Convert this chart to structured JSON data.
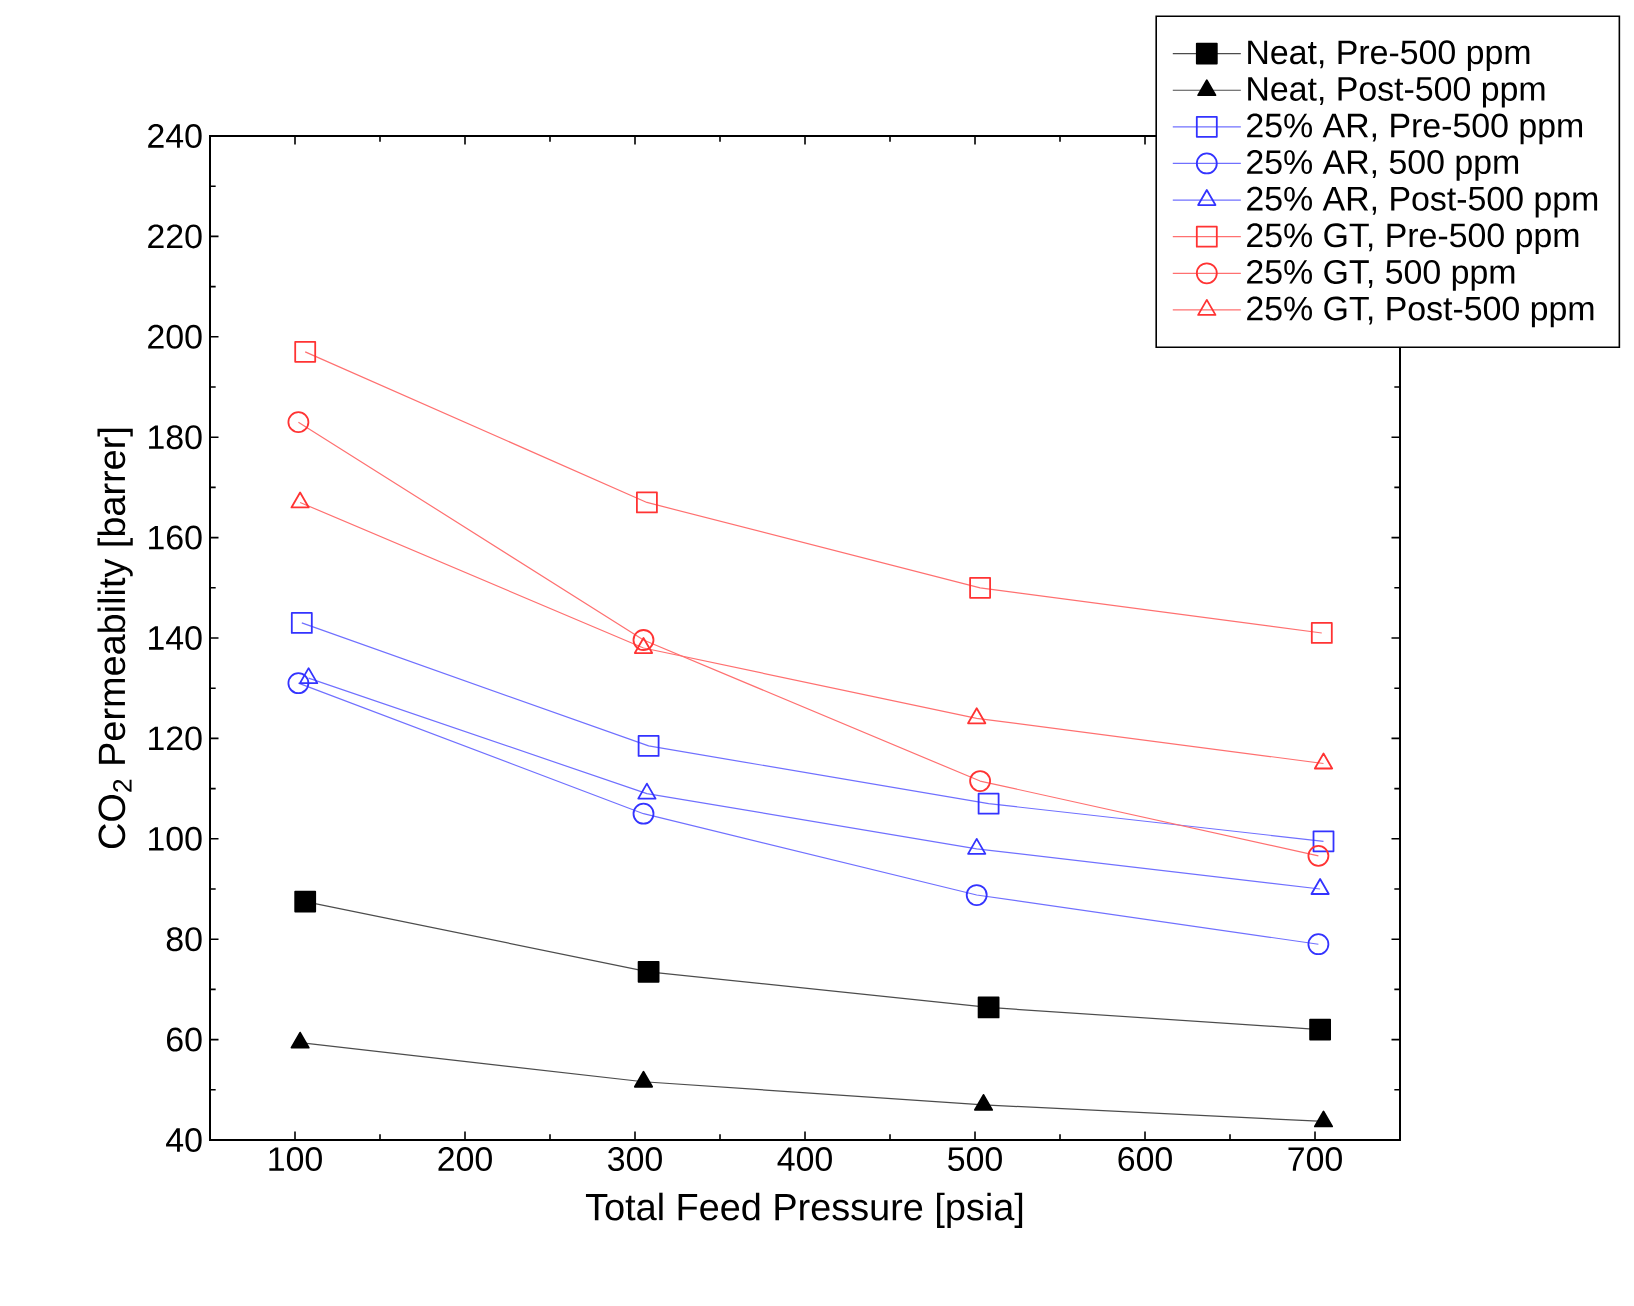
{
  "chart_data": {
    "type": "line",
    "xlabel": "Total Feed Pressure [psia]",
    "ylabel": "CO$_{2}$ Permeability [barrer]",
    "xlim": [
      50,
      750
    ],
    "xticks": [
      100,
      200,
      300,
      400,
      500,
      600,
      700
    ],
    "ylim": [
      40,
      240
    ],
    "yticks": [
      40,
      60,
      80,
      100,
      120,
      140,
      160,
      180,
      200,
      220,
      240
    ],
    "grid": false,
    "legend": "top right",
    "line_style": "solid",
    "series": [
      {
        "name": "Neat, Pre-500 ppm",
        "color": "#000000",
        "marker": "square",
        "x": [
          106,
          308,
          508,
          703
        ],
        "values": [
          87.5,
          73.5,
          66.4,
          62
        ]
      },
      {
        "name": "Neat, Post-500 ppm",
        "color": "#000000",
        "marker": "triangle",
        "x": [
          103,
          305,
          505,
          705
        ],
        "values": [
          59.4,
          51.6,
          47,
          43.7
        ]
      },
      {
        "name": "25% AR, Pre-500 ppm",
        "color": "#3333ff",
        "marker": "square",
        "x": [
          104,
          308,
          508,
          705
        ],
        "values": [
          143,
          118.5,
          107,
          99.5
        ]
      },
      {
        "name": "25% AR, 500 ppm",
        "color": "#3333ff",
        "marker": "circle",
        "x": [
          102,
          305,
          501,
          702
        ],
        "values": [
          131,
          105,
          88.8,
          79
        ]
      },
      {
        "name": "25% AR, Post-500 ppm",
        "color": "#3333ff",
        "marker": "triangle",
        "x": [
          108,
          307,
          501,
          703
        ],
        "values": [
          132,
          109,
          98,
          90
        ]
      },
      {
        "name": "25% GT, Pre-500 ppm",
        "color": "#ff3333",
        "marker": "square",
        "x": [
          106,
          307,
          503,
          704
        ],
        "values": [
          197,
          167,
          150,
          141
        ]
      },
      {
        "name": "25% GT, 500 ppm",
        "color": "#ff3333",
        "marker": "circle",
        "x": [
          102,
          305,
          503,
          702
        ],
        "values": [
          183,
          139.6,
          111.5,
          96.6
        ]
      },
      {
        "name": "25% GT, Post-500 ppm",
        "color": "#ff3333",
        "marker": "triangle",
        "x": [
          103,
          305,
          501,
          705
        ],
        "values": [
          167,
          138,
          124,
          115
        ]
      }
    ]
  }
}
